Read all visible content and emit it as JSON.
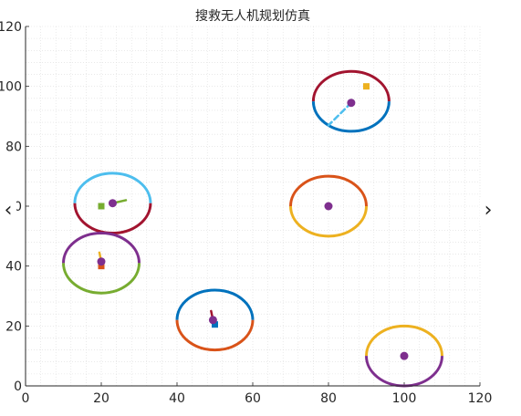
{
  "chart_data": {
    "type": "scatter",
    "title": "搜救无人机规划仿真",
    "xlabel": "",
    "ylabel": "",
    "xlim": [
      0,
      120
    ],
    "ylim": [
      0,
      120
    ],
    "xticks": [
      0,
      20,
      40,
      60,
      80,
      100,
      120
    ],
    "yticks": [
      0,
      20,
      40,
      60,
      80,
      100,
      120
    ],
    "grid": "minor-dotted",
    "circle_radius": 10,
    "targets": [
      {
        "x": 23,
        "y": 61,
        "radius": 10,
        "upper_color": "#4DBEEE",
        "lower_color": "#A2142F"
      },
      {
        "x": 86,
        "y": 95,
        "radius": 10,
        "upper_color": "#A2142F",
        "lower_color": "#0072BD"
      },
      {
        "x": 20,
        "y": 41,
        "radius": 10,
        "upper_color": "#7E2F8E",
        "lower_color": "#77AC30"
      },
      {
        "x": 80,
        "y": 60,
        "radius": 10,
        "upper_color": "#D95319",
        "lower_color": "#EDB120"
      },
      {
        "x": 50,
        "y": 22,
        "radius": 10,
        "upper_color": "#0072BD",
        "lower_color": "#D95319"
      },
      {
        "x": 100,
        "y": 10,
        "radius": 10,
        "upper_color": "#EDB120",
        "lower_color": "#7E2F8E"
      }
    ],
    "drones": [
      {
        "x": 23,
        "y": 61,
        "color": "#7E2F8E"
      },
      {
        "x": 86,
        "y": 94.5,
        "color": "#7E2F8E"
      },
      {
        "x": 20,
        "y": 41.5,
        "color": "#7E2F8E"
      },
      {
        "x": 80,
        "y": 60,
        "color": "#7E2F8E"
      },
      {
        "x": 49.5,
        "y": 22,
        "color": "#7E2F8E"
      },
      {
        "x": 100,
        "y": 10,
        "color": "#7E2F8E"
      }
    ],
    "start_points": [
      {
        "x": 20,
        "y": 60,
        "color": "#77AC30"
      },
      {
        "x": 90,
        "y": 100,
        "color": "#EDB120"
      },
      {
        "x": 20,
        "y": 40,
        "color": "#D95319"
      },
      {
        "x": 50,
        "y": 20.5,
        "color": "#0072BD"
      }
    ],
    "tracks": [
      {
        "color": "#77AC30",
        "style": "solid",
        "points": [
          [
            23,
            61
          ],
          [
            26.5,
            62
          ]
        ]
      },
      {
        "color": "#4DBEEE",
        "style": "dashed",
        "points": [
          [
            86,
            94.5
          ],
          [
            80,
            87
          ]
        ]
      },
      {
        "color": "#EDB120",
        "style": "solid",
        "points": [
          [
            20,
            41.5
          ],
          [
            19.5,
            44.5
          ]
        ]
      },
      {
        "color": "#A2142F",
        "style": "solid",
        "points": [
          [
            49.5,
            22
          ],
          [
            49,
            25
          ]
        ]
      }
    ]
  },
  "nav": {
    "prev_label": "‹",
    "next_label": "›"
  },
  "colors": {
    "axis": "#262626",
    "grid": "#dcdcdc",
    "background": "#ffffff"
  }
}
